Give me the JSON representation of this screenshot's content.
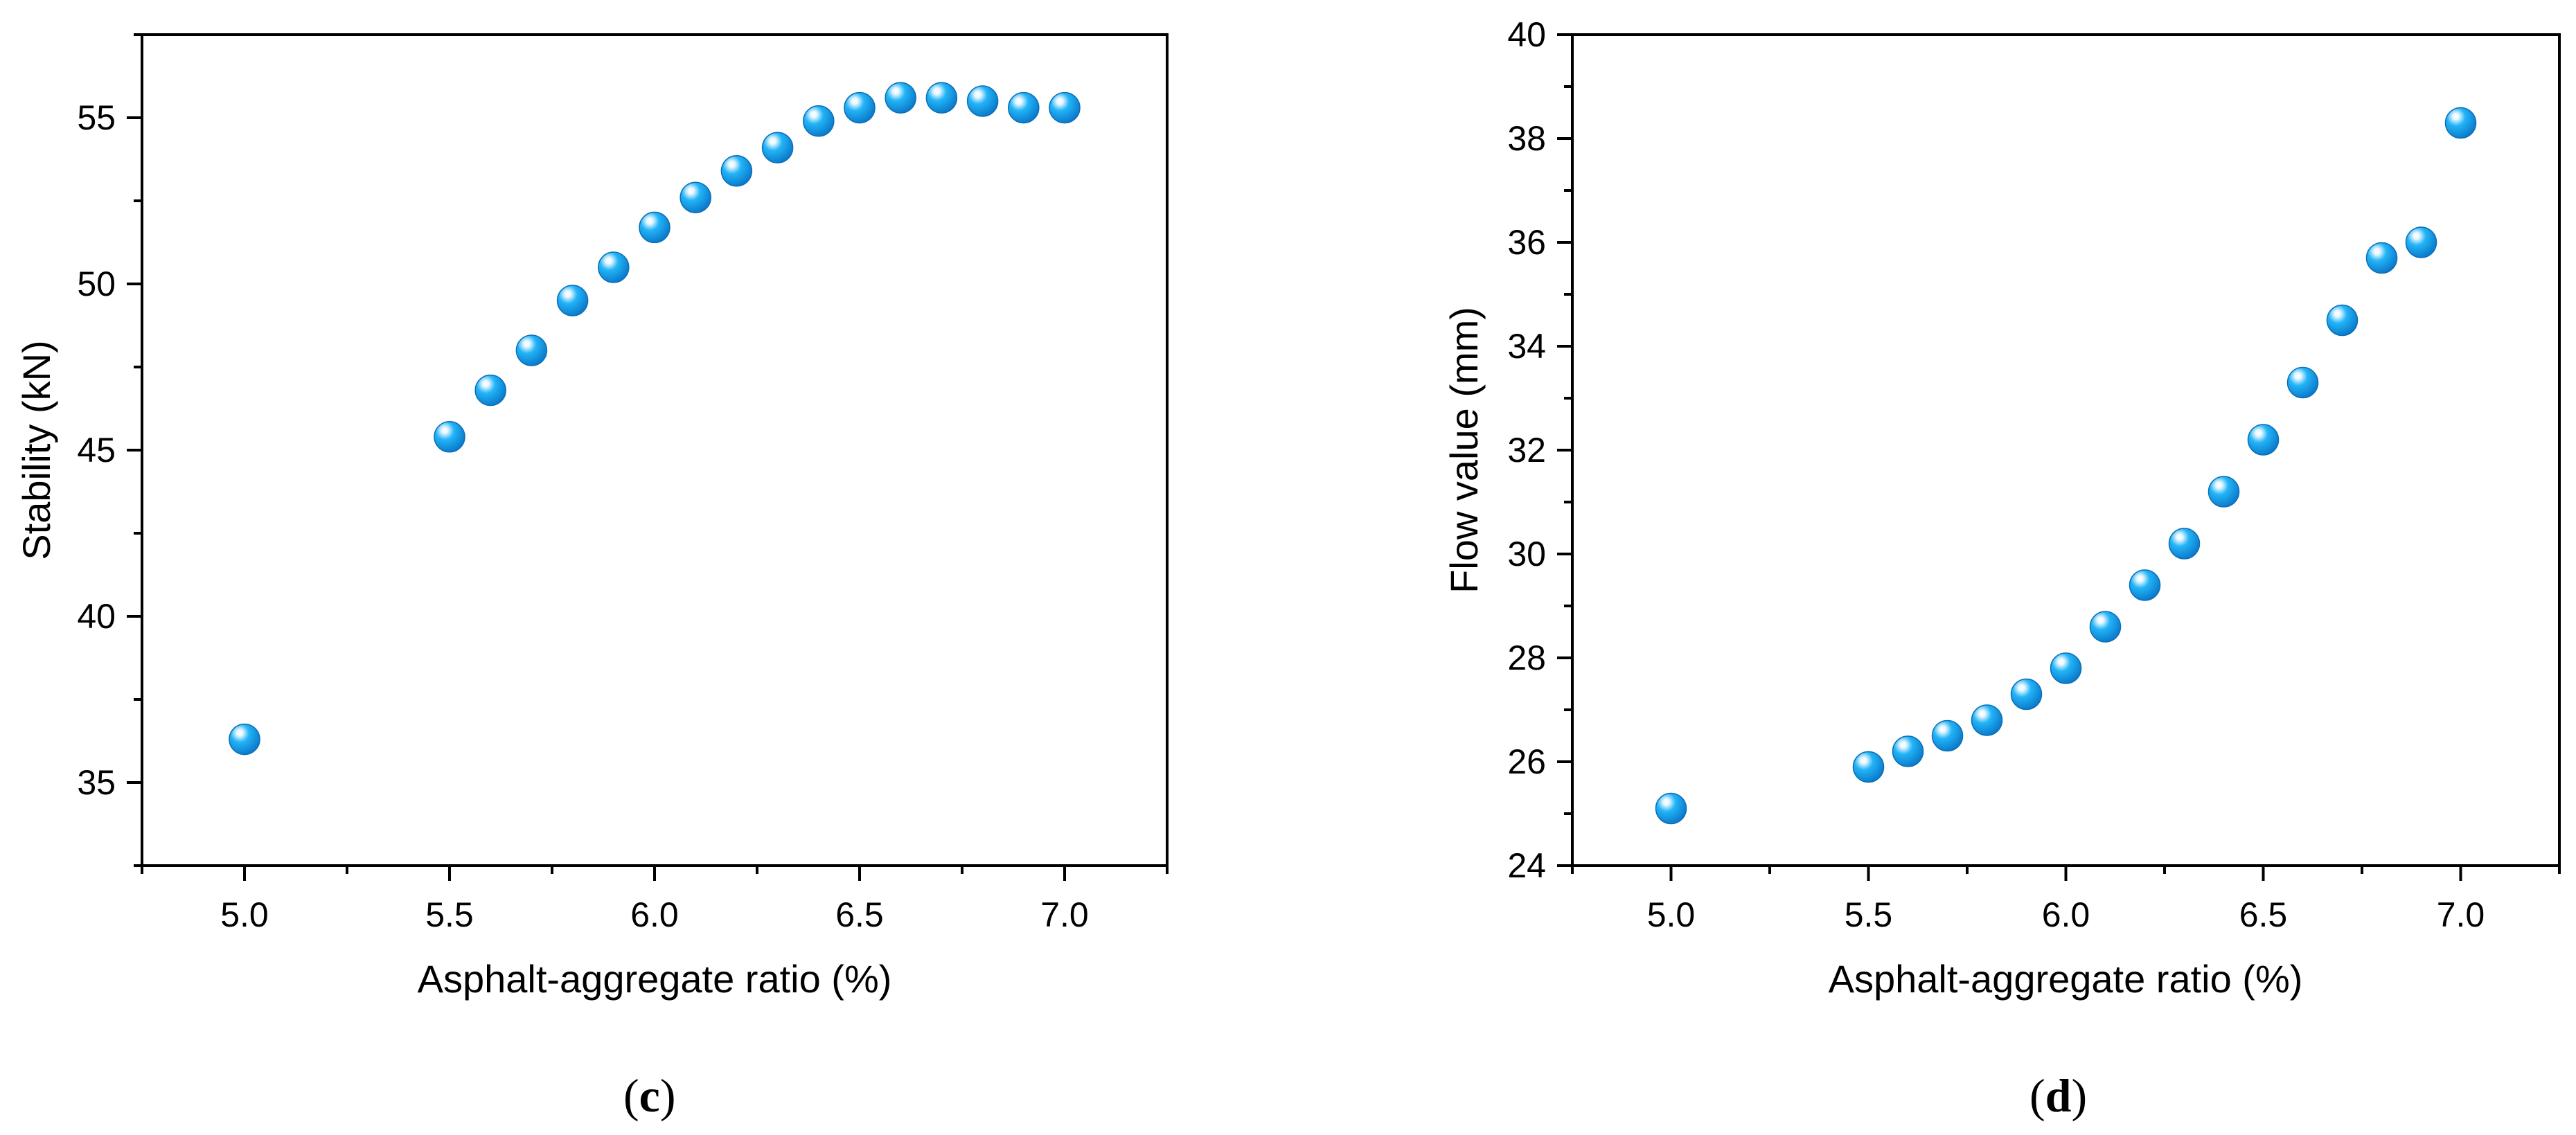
{
  "colors": {
    "marker_light": "#e9f7ff",
    "marker_mid": "#22b4f7",
    "marker_dark": "#0a77c8",
    "axis": "#000000"
  },
  "chart_data": [
    {
      "type": "scatter",
      "panel_label": "c",
      "xlabel": "Asphalt-aggregate ratio (%)",
      "ylabel": "Stability (kN)",
      "xlim": [
        4.75,
        7.25
      ],
      "ylim": [
        32.5,
        57.5
      ],
      "xticks": [
        "5.0",
        "5.5",
        "6.0",
        "6.5",
        "7.0"
      ],
      "xtick_values": [
        5.0,
        5.5,
        6.0,
        6.5,
        7.0
      ],
      "yticks": [
        "35",
        "40",
        "45",
        "50",
        "55"
      ],
      "ytick_values": [
        35,
        40,
        45,
        50,
        55
      ],
      "x": [
        5.0,
        5.5,
        5.6,
        5.7,
        5.8,
        5.9,
        6.0,
        6.1,
        6.2,
        6.3,
        6.4,
        6.5,
        6.6,
        6.7,
        6.8,
        6.9,
        7.0
      ],
      "y": [
        36.3,
        45.4,
        46.8,
        48.0,
        49.5,
        50.5,
        51.7,
        52.6,
        53.4,
        54.1,
        54.9,
        55.3,
        55.6,
        55.6,
        55.5,
        55.3,
        55.3
      ]
    },
    {
      "type": "scatter",
      "panel_label": "d",
      "xlabel": "Asphalt-aggregate ratio (%)",
      "ylabel": "Flow value (mm)",
      "xlim": [
        4.75,
        7.25
      ],
      "ylim": [
        24,
        40
      ],
      "xticks": [
        "5.0",
        "5.5",
        "6.0",
        "6.5",
        "7.0"
      ],
      "xtick_values": [
        5.0,
        5.5,
        6.0,
        6.5,
        7.0
      ],
      "yticks": [
        "24",
        "26",
        "28",
        "30",
        "32",
        "34",
        "36",
        "38",
        "40"
      ],
      "ytick_values": [
        24,
        26,
        28,
        30,
        32,
        34,
        36,
        38,
        40
      ],
      "x": [
        5.0,
        5.5,
        5.6,
        5.7,
        5.8,
        5.9,
        6.0,
        6.1,
        6.2,
        6.3,
        6.4,
        6.5,
        6.6,
        6.7,
        6.8,
        6.9,
        7.0
      ],
      "y": [
        25.1,
        25.9,
        26.2,
        26.5,
        26.8,
        27.3,
        27.8,
        28.6,
        29.4,
        30.2,
        31.2,
        32.2,
        33.3,
        34.5,
        35.7,
        36.0,
        38.3
      ]
    }
  ]
}
